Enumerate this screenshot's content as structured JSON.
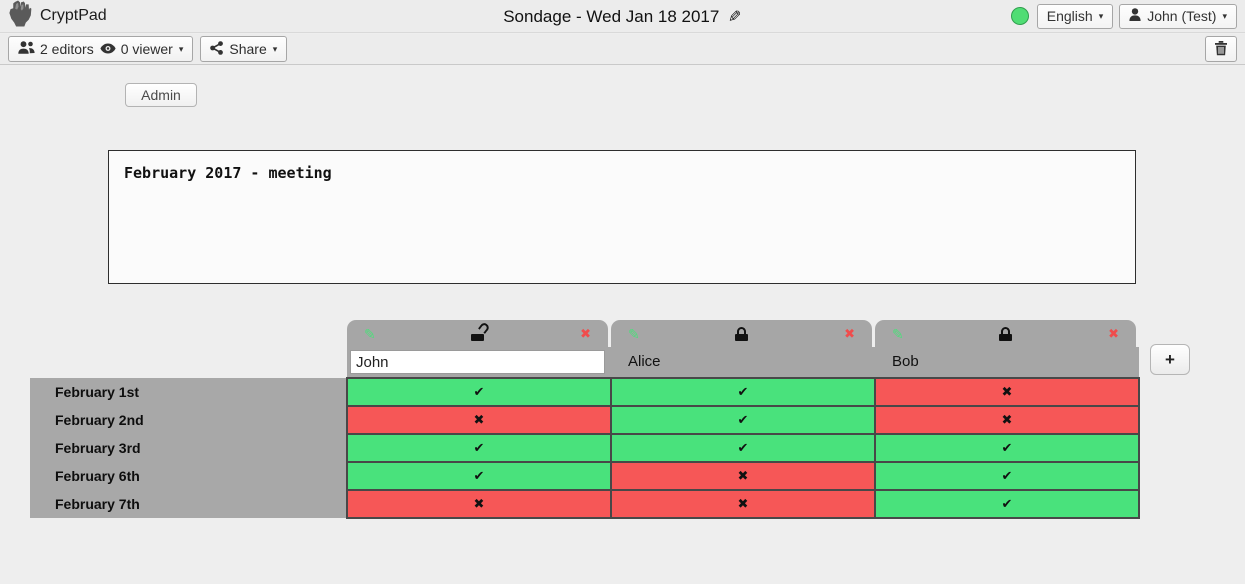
{
  "topbar": {
    "app_title": "CryptPad",
    "doc_title": "Sondage - Wed Jan 18 2017",
    "language_label": "English",
    "user_label": "John (Test)",
    "status_color": "#50dd74"
  },
  "toolbar": {
    "editors_label": "2 editors",
    "viewers_label": "0 viewer",
    "share_label": "Share"
  },
  "admin_button_label": "Admin",
  "description_text": "February 2017 - meeting",
  "poll": {
    "columns": [
      {
        "name": "John",
        "editable": true,
        "locked": false
      },
      {
        "name": "Alice",
        "editable": false,
        "locked": true
      },
      {
        "name": "Bob",
        "editable": false,
        "locked": true
      }
    ],
    "rows": [
      "February 1st",
      "February 2nd",
      "February 3rd",
      "February 6th",
      "February 7th"
    ],
    "votes": [
      [
        "yes",
        "yes",
        "no"
      ],
      [
        "no",
        "yes",
        "no"
      ],
      [
        "yes",
        "yes",
        "yes"
      ],
      [
        "yes",
        "no",
        "yes"
      ],
      [
        "no",
        "no",
        "yes"
      ]
    ],
    "add_column_label": "+"
  },
  "icons": {
    "edit_glyph": "✎",
    "remove_glyph": "✖",
    "yes_glyph": "✔",
    "no_glyph": "✖",
    "caret_glyph": "▾",
    "title_pencil_glyph": "✎"
  },
  "colors": {
    "yes_cell": "#49e27c",
    "no_cell": "#f65757",
    "table_gray": "#a6a6a6",
    "edit_icon_green": "#4fdd7c",
    "remove_icon_red": "#f04c4c"
  }
}
